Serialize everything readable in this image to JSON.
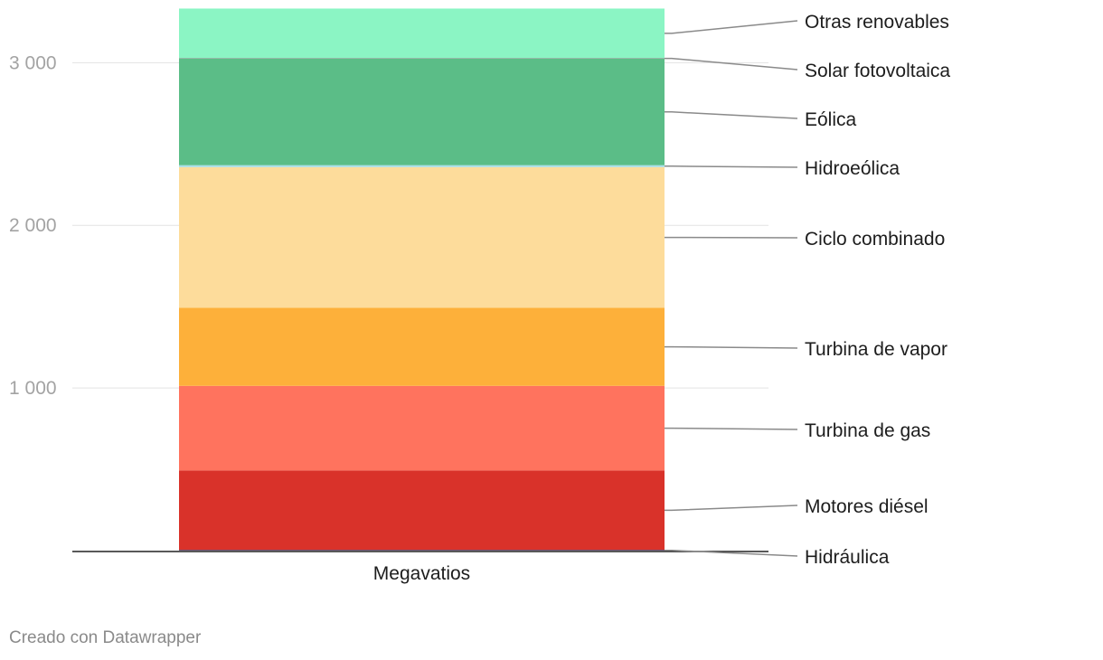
{
  "chart_data": {
    "type": "bar",
    "stacked": true,
    "categories": [
      "Megavatios"
    ],
    "ylim": [
      0,
      3330
    ],
    "yticks": [
      1000,
      2000,
      3000
    ],
    "ytick_labels": [
      "1 000",
      "2 000",
      "3 000"
    ],
    "grid": true,
    "series": [
      {
        "name": "Hidráulica",
        "values": [
          3
        ],
        "color": "#1f6fb5"
      },
      {
        "name": "Motores diésel",
        "values": [
          490
        ],
        "color": "#d9322a"
      },
      {
        "name": "Turbina de gas",
        "values": [
          520
        ],
        "color": "#ff735e"
      },
      {
        "name": "Turbina de vapor",
        "values": [
          480
        ],
        "color": "#fdb03a"
      },
      {
        "name": "Ciclo combinado",
        "values": [
          865
        ],
        "color": "#fddc9b"
      },
      {
        "name": "Hidroeólica",
        "values": [
          12
        ],
        "color": "#a8dfe6"
      },
      {
        "name": "Eólica",
        "values": [
          655
        ],
        "color": "#5bbd87"
      },
      {
        "name": "Solar fotovoltaica",
        "values": [
          3
        ],
        "color": "#8a8a8a"
      },
      {
        "name": "Otras renovables",
        "values": [
          305
        ],
        "color": "#8bf5c4"
      }
    ]
  },
  "footer": {
    "credit": "Creado con Datawrapper"
  }
}
